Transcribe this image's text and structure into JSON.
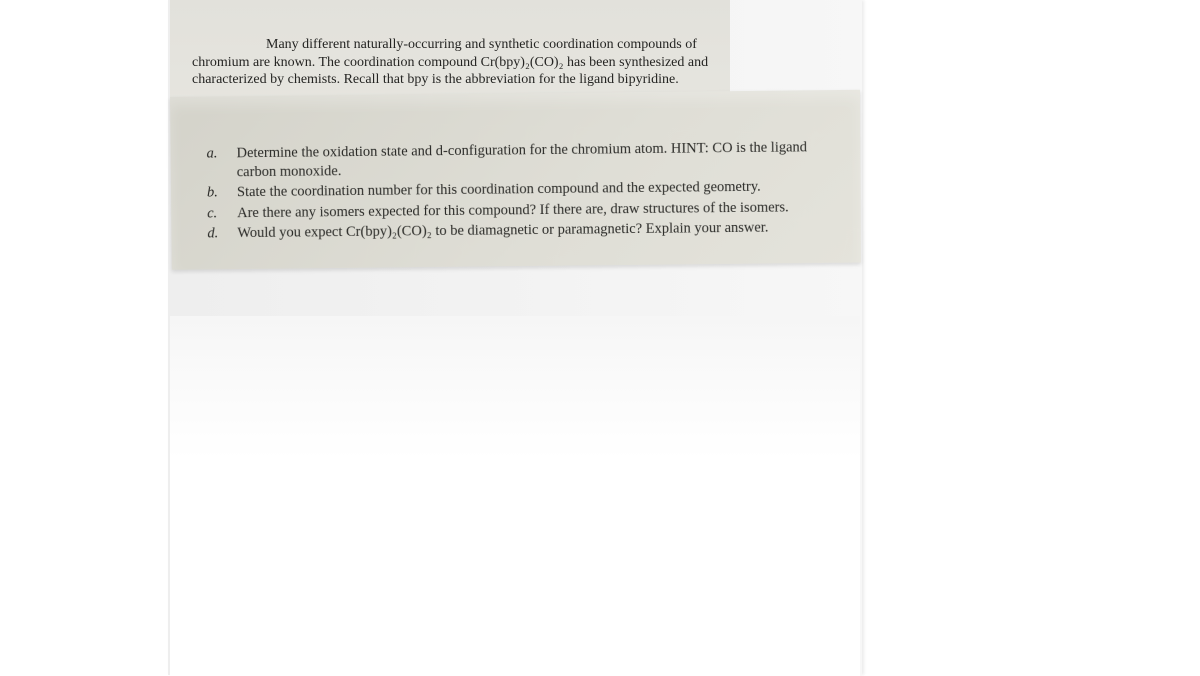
{
  "intro": {
    "text": "Many different naturally-occurring and synthetic coordination compounds of chromium are known.  The coordination compound Cr(bpy)₂(CO)₂ has been synthesized and characterized by chemists.  Recall that bpy is the abbreviation for the ligand bipyridine."
  },
  "questions": {
    "items": [
      {
        "marker": "a.",
        "text": "Determine the oxidation state and d-configuration for the chromium atom.  HINT: CO is the ligand carbon monoxide."
      },
      {
        "marker": "b.",
        "text": "State the coordination number for this coordination compound and the expected geometry."
      },
      {
        "marker": "c.",
        "text": "Are there any isomers expected for this compound?  If there are, draw structures of the isomers."
      },
      {
        "marker": "d.",
        "text": "Would you expect Cr(bpy)₂(CO)₂ to be diamagnetic or paramagnetic?  Explain your answer."
      }
    ]
  },
  "colors": {
    "intro_bg": "#e4e3dd",
    "questions_bg": "#dcdbd2",
    "text": "#262623"
  }
}
